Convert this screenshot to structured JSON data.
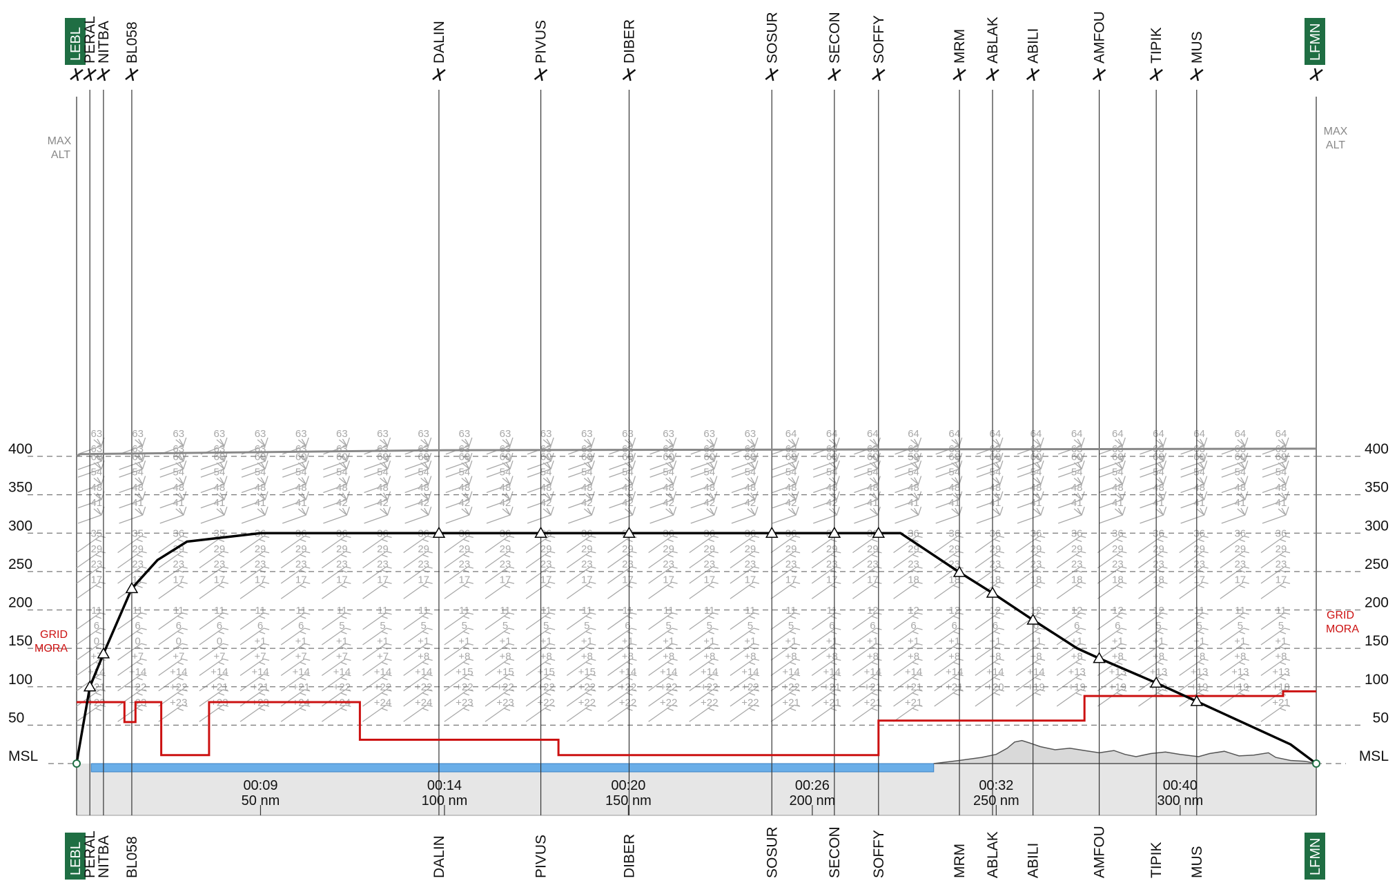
{
  "chart_data": {
    "type": "line",
    "route": {
      "departure": "LEBL",
      "arrival": "LFMN",
      "waypoints": [
        {
          "name": "LEBL",
          "nm": 0,
          "airport": true
        },
        {
          "name": "PERAL",
          "nm": 3.6,
          "airport": false
        },
        {
          "name": "NITBA",
          "nm": 7.3,
          "airport": false
        },
        {
          "name": "BL058",
          "nm": 15.0,
          "airport": false
        },
        {
          "name": "DALIN",
          "nm": 98.5,
          "airport": false
        },
        {
          "name": "PIVUS",
          "nm": 126.2,
          "airport": false
        },
        {
          "name": "DIBER",
          "nm": 150.2,
          "airport": false
        },
        {
          "name": "SOSUR",
          "nm": 189.0,
          "airport": false
        },
        {
          "name": "SECON",
          "nm": 206.0,
          "airport": false
        },
        {
          "name": "SOFFY",
          "nm": 218.0,
          "airport": false
        },
        {
          "name": "MRM",
          "nm": 240.0,
          "airport": false
        },
        {
          "name": "ABLAK",
          "nm": 249.0,
          "airport": false
        },
        {
          "name": "ABILI",
          "nm": 260.0,
          "airport": false
        },
        {
          "name": "AMFOU",
          "nm": 278.0,
          "airport": false
        },
        {
          "name": "TIPIK",
          "nm": 293.5,
          "airport": false
        },
        {
          "name": "MUS",
          "nm": 304.5,
          "airport": false
        },
        {
          "name": "LFMN",
          "nm": 337.0,
          "airport": true
        }
      ]
    },
    "ylabel_levels": [
      "MSL",
      "50",
      "100",
      "150",
      "200",
      "250",
      "300",
      "350",
      "400"
    ],
    "ylim": [
      0,
      400
    ],
    "xlim": [
      0,
      337
    ],
    "x_ticks": [
      {
        "nm": 50,
        "time": "00:09",
        "dist": "50 nm"
      },
      {
        "nm": 100,
        "time": "00:14",
        "dist": "100 nm"
      },
      {
        "nm": 150,
        "time": "00:20",
        "dist": "150 nm"
      },
      {
        "nm": 200,
        "time": "00:26",
        "dist": "200 nm"
      },
      {
        "nm": 250,
        "time": "00:32",
        "dist": "250 nm"
      },
      {
        "nm": 300,
        "time": "00:40",
        "dist": "300 nm"
      }
    ],
    "flight_profile": [
      [
        0,
        0
      ],
      [
        0.5,
        15
      ],
      [
        3.6,
        100
      ],
      [
        7.3,
        143
      ],
      [
        15.0,
        228
      ],
      [
        22,
        265
      ],
      [
        30,
        289
      ],
      [
        50,
        300
      ],
      [
        224,
        300
      ],
      [
        240,
        249
      ],
      [
        249,
        222
      ],
      [
        260,
        187
      ],
      [
        272,
        150
      ],
      [
        278,
        137
      ],
      [
        293.5,
        105
      ],
      [
        304.5,
        81
      ],
      [
        330,
        25
      ],
      [
        337,
        0
      ]
    ],
    "profile_markers": [
      3.6,
      7.3,
      15.0,
      98.5,
      126.2,
      150.2,
      189.0,
      206.0,
      218.0,
      240.0,
      249.0,
      260.0,
      278.0,
      304.5,
      293.5
    ],
    "max_alt": {
      "label": "MAX ALT",
      "points": [
        [
          0,
          400
        ],
        [
          1,
          403
        ],
        [
          100,
          408
        ],
        [
          337,
          410
        ]
      ]
    },
    "grid_mora": {
      "label": "GRID MORA",
      "points": [
        [
          0,
          80
        ],
        [
          13,
          80
        ],
        [
          13,
          54
        ],
        [
          16,
          54
        ],
        [
          16,
          80
        ],
        [
          23,
          80
        ],
        [
          23,
          11
        ],
        [
          36,
          11
        ],
        [
          36,
          80
        ],
        [
          77,
          80
        ],
        [
          77,
          31
        ],
        [
          131,
          31
        ],
        [
          131,
          11
        ],
        [
          218,
          11
        ],
        [
          218,
          56
        ],
        [
          274,
          56
        ],
        [
          274,
          88
        ],
        [
          328,
          88
        ],
        [
          328,
          94
        ],
        [
          337,
          94
        ]
      ]
    },
    "water_segment": [
      4,
      233
    ],
    "terrain": [
      [
        233,
        0
      ],
      [
        240,
        4
      ],
      [
        246,
        8
      ],
      [
        250,
        12
      ],
      [
        253,
        20
      ],
      [
        255,
        28
      ],
      [
        257,
        30
      ],
      [
        259,
        27
      ],
      [
        262,
        22
      ],
      [
        266,
        18
      ],
      [
        270,
        20
      ],
      [
        274,
        17
      ],
      [
        278,
        14
      ],
      [
        282,
        17
      ],
      [
        285,
        12
      ],
      [
        288,
        9
      ],
      [
        292,
        13
      ],
      [
        296,
        15
      ],
      [
        300,
        12
      ],
      [
        305,
        9
      ],
      [
        308,
        13
      ],
      [
        312,
        16
      ],
      [
        316,
        10
      ],
      [
        320,
        11
      ],
      [
        324,
        14
      ],
      [
        326,
        8
      ],
      [
        330,
        4
      ],
      [
        334,
        3
      ],
      [
        337,
        0
      ]
    ],
    "wind_columns_nm": [
      7.3,
      18.5,
      29.6,
      40.7,
      51.8,
      62.9,
      74.0,
      85.1,
      96.2,
      107.3,
      118.4,
      129.5,
      140.6,
      151.7,
      162.8,
      173.9,
      185.0,
      196.1,
      207.2,
      218.3,
      229.4,
      240.5,
      251.6,
      262.7,
      273.8,
      284.9,
      296.0,
      307.1,
      318.2,
      329.3
    ],
    "wind_levels": [
      {
        "fl": 410,
        "values": [
          "63",
          "63",
          "63",
          "63",
          "63",
          "63",
          "63",
          "63",
          "63",
          "63",
          "63",
          "63",
          "63",
          "63",
          "63",
          "63",
          "63",
          "64",
          "64",
          "64",
          "64",
          "64",
          "64",
          "64",
          "64",
          "64",
          "64",
          "64",
          "64",
          "64"
        ]
      },
      {
        "fl": 390,
        "values": [
          "63",
          "63",
          "63",
          "63",
          "63",
          "63",
          "63",
          "63",
          "63",
          "63",
          "63",
          "63",
          "63",
          "63",
          "63",
          "63",
          "63",
          "62",
          "63",
          "63",
          "63",
          "63",
          "63",
          "63",
          "63",
          "63",
          "63",
          "63",
          "63",
          "63"
        ]
      },
      {
        "fl": 380,
        "values": [
          "60",
          "60",
          "60",
          "60",
          "60",
          "60",
          "60",
          "60",
          "60",
          "60",
          "60",
          "60",
          "60",
          "60",
          "60",
          "60",
          "60",
          "60",
          "60",
          "60",
          "59",
          "60",
          "60",
          "60",
          "60",
          "60",
          "60",
          "60",
          "60",
          "60"
        ]
      },
      {
        "fl": 360,
        "values": [
          "54",
          "54",
          "54",
          "54",
          "54",
          "54",
          "54",
          "54",
          "54",
          "54",
          "54",
          "54",
          "54",
          "54",
          "54",
          "54",
          "54",
          "54",
          "54",
          "54",
          "54",
          "54",
          "54",
          "54",
          "54",
          "54",
          "54",
          "54",
          "54",
          "54"
        ]
      },
      {
        "fl": 340,
        "values": [
          "48",
          "48",
          "48",
          "48",
          "48",
          "48",
          "48",
          "48",
          "48",
          "48",
          "48",
          "48",
          "48",
          "48",
          "48",
          "48",
          "48",
          "48",
          "48",
          "48",
          "48",
          "48",
          "48",
          "48",
          "48",
          "48",
          "48",
          "48",
          "48",
          "48"
        ]
      },
      {
        "fl": 320,
        "values": [
          "41",
          "41",
          "41",
          "41",
          "41",
          "41",
          "42",
          "42",
          "42",
          "42",
          "42",
          "42",
          "42",
          "42",
          "42",
          "42",
          "42",
          "42",
          "42",
          "41",
          "41",
          "41",
          "41",
          "41",
          "41",
          "41",
          "41",
          "41",
          "41",
          "41"
        ]
      },
      {
        "fl": 280,
        "values": [
          "35",
          "35",
          "36",
          "35",
          "36",
          "36",
          "36",
          "36",
          "36",
          "36",
          "36",
          "36",
          "36",
          "36",
          "36",
          "36",
          "36",
          "36",
          "36",
          "36",
          "36",
          "36",
          "36",
          "36",
          "36",
          "36",
          "36",
          "36",
          "36",
          "36"
        ]
      },
      {
        "fl": 260,
        "values": [
          "29",
          "29",
          "29",
          "29",
          "29",
          "29",
          "29",
          "29",
          "29",
          "29",
          "29",
          "29",
          "29",
          "29",
          "29",
          "29",
          "29",
          "29",
          "29",
          "29",
          "29",
          "29",
          "29",
          "29",
          "29",
          "29",
          "29",
          "29",
          "29",
          "29"
        ]
      },
      {
        "fl": 240,
        "values": [
          "23",
          "23",
          "23",
          "23",
          "23",
          "23",
          "23",
          "23",
          "23",
          "23",
          "23",
          "23",
          "23",
          "23",
          "23",
          "23",
          "23",
          "23",
          "23",
          "23",
          "23",
          "23",
          "23",
          "23",
          "23",
          "23",
          "23",
          "23",
          "23",
          "23"
        ]
      },
      {
        "fl": 220,
        "values": [
          "17",
          "17",
          "17",
          "17",
          "17",
          "17",
          "17",
          "17",
          "17",
          "17",
          "17",
          "17",
          "17",
          "17",
          "17",
          "17",
          "17",
          "17",
          "17",
          "17",
          "18",
          "18",
          "18",
          "18",
          "18",
          "18",
          "18",
          "17",
          "17",
          "17"
        ]
      },
      {
        "fl": 180,
        "values": [
          "11",
          "11",
          "11",
          "11",
          "11",
          "11",
          "11",
          "11",
          "11",
          "11",
          "11",
          "11",
          "11",
          "11",
          "11",
          "11",
          "11",
          "11",
          "11",
          "12",
          "12",
          "12",
          "12",
          "12",
          "12",
          "12",
          "12",
          "11",
          "11",
          "11"
        ]
      },
      {
        "fl": 160,
        "values": [
          "6",
          "6",
          "6",
          "6",
          "6",
          "6",
          "5",
          "5",
          "5",
          "5",
          "5",
          "5",
          "5",
          "6",
          "5",
          "5",
          "5",
          "5",
          "6",
          "6",
          "6",
          "6",
          "6",
          "6",
          "6",
          "6",
          "5",
          "5",
          "5",
          "5"
        ]
      },
      {
        "fl": 140,
        "values": [
          "0",
          "0",
          "0",
          "0",
          "+1",
          "+1",
          "+1",
          "+1",
          "+1",
          "+1",
          "+1",
          "+1",
          "+1",
          "+1",
          "+1",
          "+1",
          "+1",
          "+1",
          "+1",
          "+1",
          "+1",
          "+1",
          "+1",
          "+1",
          "+1",
          "+1",
          "+1",
          "+1",
          "+1",
          "+1"
        ]
      },
      {
        "fl": 120,
        "values": [
          "+7",
          "+7",
          "+7",
          "+7",
          "+7",
          "+7",
          "+7",
          "+7",
          "+8",
          "+8",
          "+8",
          "+8",
          "+8",
          "+8",
          "+8",
          "+8",
          "+8",
          "+8",
          "+8",
          "+8",
          "+8",
          "+8",
          "+8",
          "+8",
          "+8",
          "+8",
          "+8",
          "+8",
          "+8",
          "+8"
        ]
      },
      {
        "fl": 100,
        "values": [
          "+14",
          "+14",
          "+14",
          "+14",
          "+14",
          "+14",
          "+14",
          "+14",
          "+14",
          "+15",
          "+15",
          "+15",
          "+15",
          "+14",
          "+14",
          "+14",
          "+14",
          "+14",
          "+14",
          "+14",
          "+14",
          "+14",
          "+14",
          "+14",
          "+13",
          "+13",
          "+13",
          "+13",
          "+13",
          "+13"
        ]
      },
      {
        "fl": 80,
        "values": [
          "+21",
          "+22",
          "+22",
          "+21",
          "+21",
          "+21",
          "+22",
          "+22",
          "+22",
          "+22",
          "+22",
          "+22",
          "+22",
          "+22",
          "+22",
          "+22",
          "+22",
          "+22",
          "+21",
          "+21",
          "+21",
          "+21",
          "+20",
          "+19",
          "+19",
          "+19",
          "+19",
          "+19",
          "+19",
          "+18"
        ]
      },
      {
        "fl": 60,
        "values": [
          "+23",
          "+23",
          "+23",
          "+23",
          "+23",
          "+24",
          "+24",
          "+24",
          "+24",
          "+23",
          "+23",
          "+22",
          "+22",
          "+22",
          "+22",
          "+22",
          "+22",
          "+21",
          "+21",
          "+21",
          "+21",
          "",
          "",
          "",
          "",
          "",
          "",
          "",
          "",
          "+21"
        ]
      }
    ]
  },
  "labels": {
    "max_alt_line1": "MAX",
    "max_alt_line2": "ALT",
    "grid_mora_line1": "GRID",
    "grid_mora_line2": "MORA",
    "msl": "MSL"
  },
  "colors": {
    "profile": "#000000",
    "mora": "#cc1111",
    "max_alt": "#888888",
    "water": "#6aaee8",
    "terrain": "#d9d9d9",
    "airport_box": "#1f6e43",
    "wind": "#a8a8a8",
    "gridline": "#777777"
  }
}
